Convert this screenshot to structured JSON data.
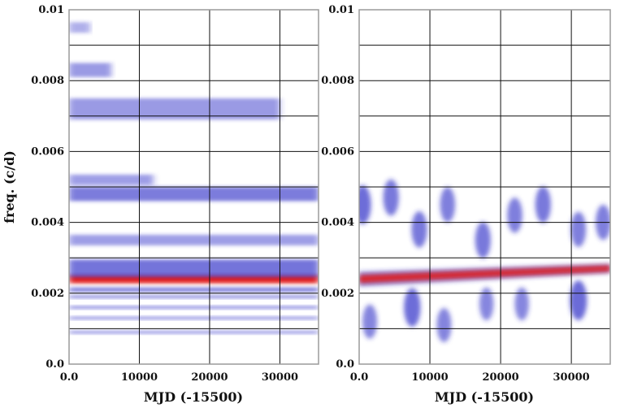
{
  "chart_data": [
    {
      "type": "heatmap",
      "title": "",
      "xlabel": "MJD (-15500)",
      "ylabel": "freq. (c/d)",
      "xlim": [
        0,
        35500
      ],
      "ylim": [
        0,
        0.01
      ],
      "x_ticks": [
        0,
        10000,
        20000,
        30000
      ],
      "x_tick_labels": [
        "0.0",
        "10000",
        "20000",
        "30000"
      ],
      "y_ticks": [
        0,
        0.002,
        0.004,
        0.006,
        0.008,
        0.01
      ],
      "y_tick_labels": [
        "0.0",
        "0.002",
        "0.004",
        "0.006",
        "0.008",
        "0.01"
      ],
      "grid": true,
      "colormap": {
        "low": "#ffffff",
        "mid": "#3030c8",
        "high": "#e01818"
      },
      "dominant_ridge_freq": 0.0024,
      "bands": [
        {
          "freq": 0.0024,
          "width": 0.00012,
          "level": 1.0,
          "x_from": 0,
          "x_to": 35500
        },
        {
          "freq": 0.0027,
          "width": 0.00025,
          "level": 0.6,
          "x_from": 0,
          "x_to": 35500
        },
        {
          "freq": 0.0021,
          "width": 6e-05,
          "level": 0.55,
          "x_from": 0,
          "x_to": 35500
        },
        {
          "freq": 0.0019,
          "width": 4e-05,
          "level": 0.5,
          "x_from": 0,
          "x_to": 35500
        },
        {
          "freq": 0.0016,
          "width": 4e-05,
          "level": 0.45,
          "x_from": 0,
          "x_to": 35500
        },
        {
          "freq": 0.0013,
          "width": 4e-05,
          "level": 0.4,
          "x_from": 0,
          "x_to": 35500
        },
        {
          "freq": 0.0009,
          "width": 4e-05,
          "level": 0.4,
          "x_from": 0,
          "x_to": 35500
        },
        {
          "freq": 0.0035,
          "width": 0.00015,
          "level": 0.3,
          "x_from": 0,
          "x_to": 35500
        },
        {
          "freq": 0.0048,
          "width": 0.0002,
          "level": 0.55,
          "x_from": 0,
          "x_to": 35500
        },
        {
          "freq": 0.0052,
          "width": 0.00015,
          "level": 0.3,
          "x_from": 0,
          "x_to": 12000
        },
        {
          "freq": 0.0072,
          "width": 0.0003,
          "level": 0.35,
          "x_from": 0,
          "x_to": 30000
        },
        {
          "freq": 0.0083,
          "width": 0.0002,
          "level": 0.35,
          "x_from": 0,
          "x_to": 6000
        },
        {
          "freq": 0.0095,
          "width": 0.00015,
          "level": 0.2,
          "x_from": 0,
          "x_to": 3000
        }
      ]
    },
    {
      "type": "heatmap",
      "title": "",
      "xlabel": "MJD (-15500)",
      "ylabel": "",
      "xlim": [
        0,
        35500
      ],
      "ylim": [
        0,
        0.01
      ],
      "x_ticks": [
        0,
        10000,
        20000,
        30000
      ],
      "x_tick_labels": [
        "0.0",
        "10000",
        "20000",
        "30000"
      ],
      "y_ticks": [
        0,
        0.002,
        0.004,
        0.006,
        0.008,
        0.01
      ],
      "y_tick_labels": [
        "0.0",
        "0.002",
        "0.004",
        "0.006",
        "0.008",
        "0.01"
      ],
      "grid": true,
      "colormap": {
        "low": "#ffffff",
        "mid": "#3030c8",
        "high": "#e01818"
      },
      "dominant_ridge_freq": 0.0025,
      "ridge": {
        "freq_start": 0.0024,
        "freq_end": 0.0027,
        "level": 1.0
      },
      "blobs": [
        {
          "x": 500,
          "freq": 0.0045,
          "level": 0.7
        },
        {
          "x": 4500,
          "freq": 0.0047,
          "level": 0.6
        },
        {
          "x": 8500,
          "freq": 0.0038,
          "level": 0.6
        },
        {
          "x": 12500,
          "freq": 0.0045,
          "level": 0.55
        },
        {
          "x": 17500,
          "freq": 0.0035,
          "level": 0.6
        },
        {
          "x": 22000,
          "freq": 0.0042,
          "level": 0.55
        },
        {
          "x": 26000,
          "freq": 0.0045,
          "level": 0.6
        },
        {
          "x": 31000,
          "freq": 0.0038,
          "level": 0.55
        },
        {
          "x": 34500,
          "freq": 0.004,
          "level": 0.55
        },
        {
          "x": 7500,
          "freq": 0.0016,
          "level": 0.7
        },
        {
          "x": 12000,
          "freq": 0.0011,
          "level": 0.5
        },
        {
          "x": 18000,
          "freq": 0.0017,
          "level": 0.45
        },
        {
          "x": 23000,
          "freq": 0.0017,
          "level": 0.45
        },
        {
          "x": 31000,
          "freq": 0.0018,
          "level": 0.75
        },
        {
          "x": 1500,
          "freq": 0.0012,
          "level": 0.5
        }
      ]
    }
  ]
}
